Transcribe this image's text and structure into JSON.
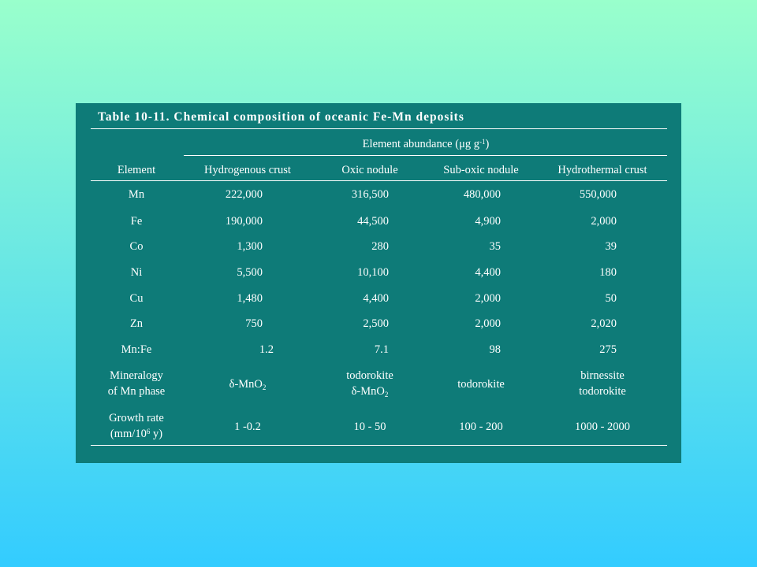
{
  "table": {
    "title": "Table 10-11. Chemical composition of oceanic Fe-Mn deposits",
    "group_header": {
      "label": "Element abundance (μg g",
      "sup": "-1",
      "close": ")"
    },
    "columns": [
      "Element",
      "Hydrogenous crust",
      "Oxic nodule",
      "Sub-oxic nodule",
      "Hydrothermal crust"
    ],
    "rows": [
      {
        "element": "Mn",
        "values": [
          "222,000",
          "316,500",
          "480,000",
          "550,000"
        ]
      },
      {
        "element": "Fe",
        "values": [
          "190,000",
          "44,500",
          "4,900",
          "2,000"
        ]
      },
      {
        "element": "Co",
        "values": [
          "1,300",
          "280",
          "35",
          "39"
        ]
      },
      {
        "element": "Ni",
        "values": [
          "5,500",
          "10,100",
          "4,400",
          "180"
        ]
      },
      {
        "element": "Cu",
        "values": [
          "1,480",
          "4,400",
          "2,000",
          "50"
        ]
      },
      {
        "element": "Zn",
        "values": [
          "750",
          "2,500",
          "2,000",
          "2,020"
        ]
      },
      {
        "element": "Mn:Fe",
        "values": [
          "1.2",
          "7.1",
          "98",
          "275"
        ]
      }
    ],
    "mineralogy": {
      "label_line1": "Mineralogy",
      "label_line2": "of Mn phase",
      "hydrogenous": {
        "prefix": "δ-MnO",
        "sub": "2"
      },
      "oxic_line1": "todorokite",
      "oxic_line2": {
        "prefix": "δ-MnO",
        "sub": "2"
      },
      "suboxic": "todorokite",
      "hydrothermal_line1": "birnessite",
      "hydrothermal_line2": "todorokite"
    },
    "growth": {
      "label_line1": "Growth rate",
      "label_prefix": "(mm/10",
      "label_sup": "6",
      "label_suffix": " y)",
      "values": [
        "1 -0.2",
        "10 - 50",
        "100 - 200",
        "1000 - 2000"
      ]
    }
  }
}
